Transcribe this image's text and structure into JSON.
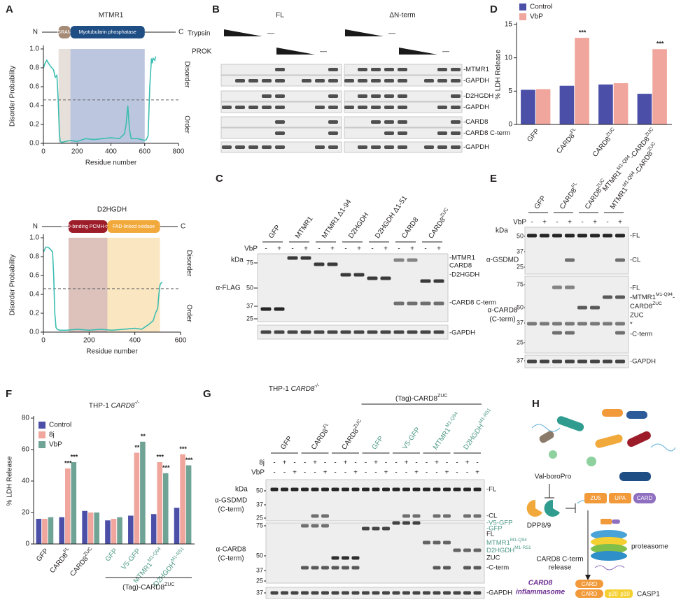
{
  "A": {
    "label": "A",
    "charts": [
      {
        "title": "MTMR1",
        "n": "N",
        "c": "C",
        "ylabel": "Disorder Probability",
        "xlabel": "Residue number",
        "upper": "Disorder",
        "lower": "Order",
        "domains": [
          {
            "name": "GRAM",
            "start": 90,
            "end": 160,
            "shade": "#e6dfda",
            "box": "#a58a76"
          },
          {
            "name": "Myotubularin phosphatase",
            "start": 160,
            "end": 600,
            "shade": "#bcc7df",
            "box": "#1f4e85"
          }
        ],
        "threshold": 0.46,
        "color": "#3dbdb1",
        "xlim": [
          0,
          800
        ],
        "xticks": [
          0,
          200,
          400,
          600,
          800
        ],
        "ylim": [
          0,
          1
        ],
        "yticks": [
          {
            "value": 0,
            "label": "0.0"
          },
          {
            "value": 0.2,
            "label": "0.2"
          },
          {
            "value": 0.4,
            "label": "0.4"
          },
          {
            "value": 0.6,
            "label": "0.6"
          },
          {
            "value": 0.8,
            "label": "0.8"
          },
          {
            "value": 1,
            "label": "1.0"
          }
        ],
        "x": [
          1,
          10,
          20,
          30,
          40,
          50,
          60,
          70,
          80,
          88,
          95,
          100,
          110,
          130,
          160,
          200,
          250,
          300,
          350,
          400,
          450,
          480,
          490,
          500,
          510,
          520,
          560,
          600,
          610,
          620,
          630,
          640,
          645,
          650,
          660,
          665
        ],
        "y": [
          0.8,
          0.85,
          0.88,
          0.85,
          0.82,
          0.8,
          0.78,
          0.7,
          0.72,
          0.45,
          0.1,
          0.02,
          0.01,
          0.02,
          0.03,
          0.02,
          0.05,
          0.04,
          0.05,
          0.06,
          0.05,
          0.1,
          0.2,
          0.4,
          0.15,
          0.05,
          0.05,
          0.03,
          0.04,
          0.08,
          0.6,
          0.9,
          0.85,
          0.9,
          0.88,
          0.92
        ]
      },
      {
        "title": "D2HGDH",
        "n": "N",
        "c": "C",
        "ylabel": "Disorder Probability",
        "xlabel": "Residue number",
        "upper": "Disorder",
        "lower": "Order",
        "domains": [
          {
            "name": "FAD-binding PCMH-type",
            "start": 110,
            "end": 280,
            "shade": "#dcc2bb",
            "box": "#9c1c2a"
          },
          {
            "name": "FAD-linked oxidase",
            "start": 280,
            "end": 510,
            "shade": "#fbe6c2",
            "box": "#f2a93b"
          }
        ],
        "threshold": 0.46,
        "color": "#3dbdb1",
        "xlim": [
          0,
          600
        ],
        "xticks": [
          0,
          200,
          400,
          600
        ],
        "ylim": [
          0,
          1
        ],
        "yticks": [
          {
            "value": 0,
            "label": "0.0"
          },
          {
            "value": 0.2,
            "label": "0.2"
          },
          {
            "value": 0.4,
            "label": "0.4"
          },
          {
            "value": 0.6,
            "label": "0.6"
          },
          {
            "value": 0.8,
            "label": "0.8"
          },
          {
            "value": 1,
            "label": "1.0"
          }
        ],
        "x": [
          1,
          10,
          20,
          30,
          40,
          45,
          50,
          55,
          60,
          70,
          80,
          100,
          150,
          200,
          250,
          300,
          350,
          400,
          430,
          460,
          480,
          490,
          500,
          505,
          510,
          515,
          520
        ],
        "y": [
          0.85,
          0.9,
          0.9,
          0.88,
          0.85,
          0.6,
          0.2,
          0.05,
          0.03,
          0.02,
          0.02,
          0.02,
          0.03,
          0.02,
          0.03,
          0.02,
          0.03,
          0.04,
          0.03,
          0.08,
          0.12,
          0.2,
          0.25,
          0.4,
          0.5,
          0.52,
          0.53
        ]
      }
    ]
  },
  "B": {
    "label": "B",
    "groups": [
      "FL",
      "ΔN-term"
    ],
    "treatments": [
      {
        "name": "Trypsin",
        "end": [
          "—",
          "—"
        ]
      },
      {
        "name": "PROK",
        "end": [
          "—",
          "—"
        ]
      }
    ],
    "bands": [
      "-MTMR1",
      "-GAPDH",
      "-D2HGDH",
      "-GAPDH",
      "-CARD8",
      "-CARD8 C-term",
      "-GAPDH"
    ]
  },
  "C": {
    "label": "C",
    "lanes": [
      "GFP",
      "MTMR1",
      "MTMR1 Δ1-94",
      "D2HGDH",
      "D2HGDH Δ1-51",
      "CARD8",
      [
        "CARD8",
        {
          "sup": "ZUC"
        }
      ]
    ],
    "treatments": [
      {
        "name": "VbP",
        "signs": [
          "-",
          "+",
          "-",
          "+",
          "-",
          "+",
          "-",
          "+",
          "-",
          "+",
          "-",
          "+",
          "-",
          "+"
        ]
      }
    ],
    "kda_unit": "kDa",
    "kda": [
      [
        "75",
        "50",
        "37",
        "25"
      ]
    ],
    "antibodies": [
      [
        "α-FLAG"
      ]
    ],
    "bands": [
      "-MTMR1",
      "CARD8",
      "-D2HGDH",
      "-CARD8 C-term",
      "-GAPDH"
    ]
  },
  "D": {
    "label": "D",
    "chart_data": {
      "type": "bar",
      "ylabel": "% LDH Release",
      "categories": [
        "GFP",
        [
          "CARD8",
          {
            "sup": "FL"
          }
        ],
        [
          "CARD8",
          {
            "sup": "ZUC"
          }
        ],
        [
          "MTMR1",
          {
            "sup": "M1-Q94"
          },
          "-CARD8",
          {
            "sup": "ZUC"
          }
        ]
      ],
      "series": [
        {
          "name": "Control",
          "color": "#4b4fa8",
          "values": [
            5.2,
            5.8,
            6.0,
            4.6
          ]
        },
        {
          "name": "VbP",
          "color": "#f0a69c",
          "values": [
            5.3,
            13.0,
            6.2,
            11.3
          ],
          "stars": [
            null,
            "***",
            null,
            "***"
          ]
        }
      ],
      "ylim": [
        0,
        15
      ],
      "yticks": [
        0,
        5,
        10,
        15
      ],
      "legend": "top-left"
    }
  },
  "E": {
    "label": "E",
    "lanes": [
      "GFP",
      [
        "CARD8",
        {
          "sup": "FL"
        }
      ],
      [
        "CARD8",
        {
          "sup": "ZUC"
        }
      ],
      [
        "MTMR1",
        {
          "sup": "M1-Q94"
        },
        "-CARD8",
        {
          "sup": "ZUC"
        }
      ]
    ],
    "treatments": [
      {
        "name": "VbP",
        "signs": [
          "-",
          "+",
          "-",
          "+",
          "-",
          "+",
          "-",
          "+"
        ]
      }
    ],
    "kda_unit": "kDa",
    "kda": [
      [
        "50",
        "37",
        "25"
      ],
      [
        "75",
        "50",
        "37",
        "25"
      ],
      [
        "37"
      ]
    ],
    "antibodies": [
      [
        "α-GSDMD"
      ],
      [
        "α-CARD8",
        "(C-term)"
      ]
    ],
    "bands": [
      "-FL",
      "-CL",
      "-FL",
      [
        "-MTMR1",
        {
          "sup": "M1-Q94"
        },
        "-"
      ],
      [
        "CARD8",
        {
          "sup": "ZUC"
        }
      ],
      "ZUC",
      "*",
      "-C-term",
      "-GAPDH"
    ]
  },
  "F": {
    "label": "F",
    "chart_data": {
      "type": "bar",
      "title": [
        "THP-1 ",
        {
          "i": "CARD8"
        },
        {
          "sup": "-/-"
        }
      ],
      "ylabel": "% LDH Release",
      "categories": [
        "GFP",
        [
          "CARD8",
          {
            "sup": "FL"
          }
        ],
        [
          "CARD8",
          {
            "sup": "ZUC"
          }
        ],
        "GFP",
        "V5-GFP",
        [
          "MTMR1",
          {
            "sup": "M1-Q94"
          }
        ],
        [
          "D2HGDH",
          {
            "sup": "M1-R51"
          }
        ]
      ],
      "category_colors": [
        "#231f20",
        "#231f20",
        "#231f20",
        "#4f9a88",
        "#4f9a88",
        "#4f9a88",
        "#4f9a88"
      ],
      "footer": [
        "(Tag)-CARD8",
        {
          "sup": "ZUC"
        }
      ],
      "series": [
        {
          "name": "Control",
          "color": "#4b4fa8",
          "values": [
            16,
            17,
            21,
            15,
            18,
            19,
            23
          ]
        },
        {
          "name": "8j",
          "color": "#f0a69c",
          "values": [
            16,
            48,
            20,
            16,
            58,
            52,
            57
          ],
          "stars": [
            null,
            "***",
            null,
            null,
            "**",
            "***",
            "***"
          ]
        },
        {
          "name": "VbP",
          "color": "#6fa396",
          "values": [
            17,
            52,
            20,
            17,
            65,
            45,
            50
          ],
          "stars": [
            null,
            "***",
            null,
            null,
            "**",
            "***",
            "***"
          ]
        }
      ],
      "ylim": [
        0,
        80
      ],
      "yticks": [
        0,
        20,
        40,
        60,
        80
      ],
      "legend": "top-left"
    }
  },
  "G": {
    "label": "G",
    "title": [
      "THP-1 ",
      {
        "i": "CARD8"
      },
      {
        "sup": "-/-"
      }
    ],
    "subtitle": [
      "(Tag)-CARD8",
      {
        "sup": "ZUC"
      }
    ],
    "lanes": [
      "GFP",
      [
        "CARD8",
        {
          "sup": "FL"
        }
      ],
      [
        "CARD8",
        {
          "sup": "ZUC"
        }
      ],
      "GFP",
      "V5-GFP",
      [
        "MTMR1",
        {
          "sup": "M1-Q94"
        }
      ],
      [
        "D2HGDH",
        {
          "sup": "M1-R51"
        }
      ]
    ],
    "lane_colors": [
      "#231f20",
      "#231f20",
      "#231f20",
      "#4f9a88",
      "#4f9a88",
      "#4f9a88",
      "#4f9a88"
    ],
    "treatments": [
      {
        "name": "8j",
        "signs": [
          "-",
          "+",
          "-",
          "-",
          "+",
          "-",
          "-",
          "+",
          "-",
          "-",
          "+",
          "-",
          "-",
          "+",
          "-",
          "-",
          "+",
          "-",
          "-",
          "+",
          "-"
        ]
      },
      {
        "name": "VbP",
        "signs": [
          "-",
          "-",
          "+",
          "-",
          "-",
          "+",
          "-",
          "-",
          "+",
          "-",
          "-",
          "+",
          "-",
          "-",
          "+",
          "-",
          "-",
          "+",
          "-",
          "-",
          "+"
        ]
      }
    ],
    "kda_unit": "kDa",
    "kda": [
      [
        "50",
        "37",
        "25"
      ],
      [
        "75",
        "50",
        "37",
        "25"
      ],
      [
        "37"
      ]
    ],
    "antibodies": [
      [
        "α-GSDMD",
        "(C-term)"
      ],
      [
        "α-CARD8",
        "(C-term)"
      ]
    ],
    "bands": [
      "-FL",
      "-CL",
      "-V5-GFP",
      "-GFP",
      "FL",
      [
        "MTMR1",
        {
          "sup": "M1-Q94"
        }
      ],
      [
        "D2HGDH",
        {
          "sup": "M1-R51"
        }
      ],
      "ZUC",
      "-C-term",
      "-GAPDH"
    ],
    "band_colors": [
      "#231f20",
      "#231f20",
      "#4f9a88",
      "#4f9a88",
      "#231f20",
      "#4f9a88",
      "#4f9a88",
      "#231f20",
      "#231f20",
      "#231f20"
    ]
  },
  "H": {
    "label": "H",
    "inhibitor": "Val-boroPro",
    "enzyme": "DPP8/9",
    "domains": [
      "ZU5",
      "UPA",
      "CARD"
    ],
    "proteasome": "proteasome",
    "release": [
      "CARD8 C-term",
      "release"
    ],
    "inflammasome": [
      "CARD8",
      "inflammasome"
    ],
    "complex": [
      "CARD",
      "CARD",
      "p20",
      "p10",
      "CASP1"
    ]
  }
}
